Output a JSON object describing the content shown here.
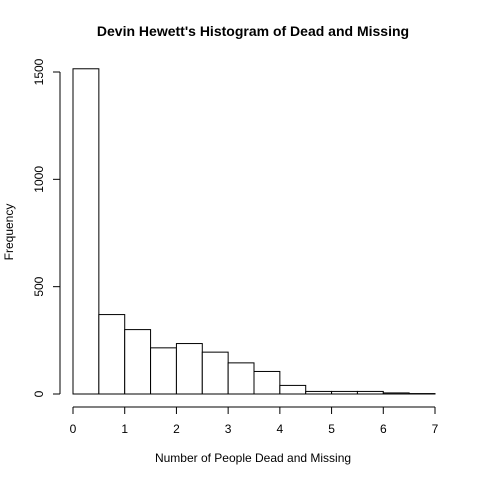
{
  "chart_data": {
    "type": "bar",
    "title": "Devin Hewett's Histogram of Dead and Missing",
    "xlabel": "Number of People Dead and Missing",
    "ylabel": "Frequency",
    "bin_edges": [
      0,
      0.5,
      1,
      1.5,
      2,
      2.5,
      3,
      3.5,
      4,
      4.5,
      5,
      5.5,
      6,
      6.5,
      7
    ],
    "values": [
      1515,
      370,
      300,
      215,
      235,
      195,
      145,
      105,
      40,
      12,
      12,
      12,
      5,
      2
    ],
    "xlim": [
      0,
      7
    ],
    "ylim": [
      0,
      1500
    ],
    "x_ticks": [
      "0",
      "1",
      "2",
      "3",
      "4",
      "5",
      "6",
      "7"
    ],
    "y_ticks": [
      "0",
      "500",
      "1000",
      "1500"
    ],
    "grid": false,
    "colors": {
      "bar_fill": "#ffffff",
      "bar_stroke": "#000000"
    }
  }
}
